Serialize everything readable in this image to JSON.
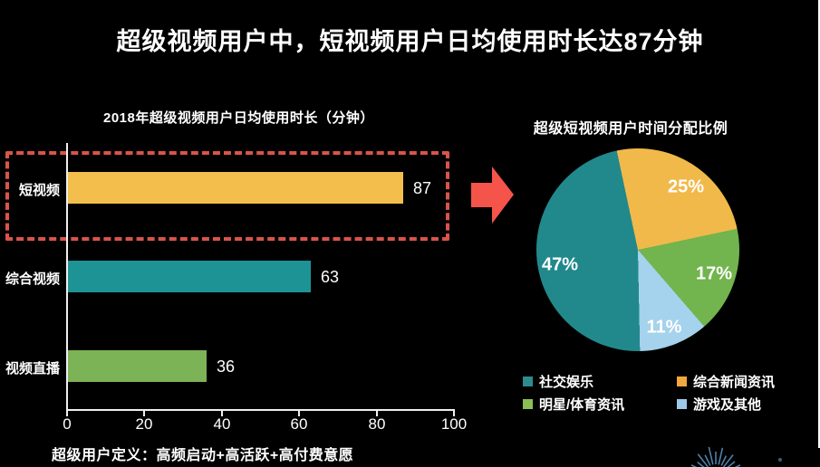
{
  "page": {
    "background": "#000000"
  },
  "header": {
    "title": "超级视频用户中，短视频用户日均使用时长达87分钟"
  },
  "bar_section": {
    "title": "2018年超级视频用户日均使用时长（分钟）",
    "bars": [
      {
        "label": "短视频",
        "value": 87,
        "value_label": "87",
        "color": "#F3BE4C"
      },
      {
        "label": "综合视频",
        "value": 63,
        "value_label": "63",
        "color": "#1E9396"
      },
      {
        "label": "视频直播",
        "value": 36,
        "value_label": "36",
        "color": "#7CB356"
      }
    ],
    "x_ticks": [
      "0",
      "20",
      "40",
      "60",
      "80",
      "100"
    ],
    "highlight_color": "#D9544A"
  },
  "arrow": {
    "color": "#F5544B"
  },
  "pie_section": {
    "title": "超级短视频用户时间分配比例",
    "start_angle_deg": -12,
    "slices": [
      {
        "label": "综合新闻资讯",
        "pct": 25,
        "pct_label": "25%",
        "color": "#F1B94A"
      },
      {
        "label": "明星/体育资讯",
        "pct": 17,
        "pct_label": "17%",
        "color": "#72B44E"
      },
      {
        "label": "游戏及其他",
        "pct": 11,
        "pct_label": "11%",
        "color": "#A5D2EC"
      },
      {
        "label": "社交娱乐",
        "pct": 47,
        "pct_label": "47%",
        "color": "#21898C"
      }
    ],
    "legend": [
      {
        "label": "社交娱乐",
        "color": "#2E8B8E"
      },
      {
        "label": "综合新闻资讯",
        "color": "#F0A73E"
      },
      {
        "label": "明星/体育资讯",
        "color": "#8ABF55"
      },
      {
        "label": "游戏及其他",
        "color": "#9FC9E8"
      }
    ]
  },
  "footnote": {
    "text": "超级用户定义：高频启动+高活跃+高付费意愿"
  },
  "decoration": {
    "starburst_color": "#4E81A8"
  },
  "chart_data": [
    {
      "type": "bar",
      "orientation": "horizontal",
      "title": "2018年超级视频用户日均使用时长（分钟）",
      "categories": [
        "短视频",
        "综合视频",
        "视频直播"
      ],
      "values": [
        87,
        63,
        36
      ],
      "value_labels": [
        "87",
        "63",
        "36"
      ],
      "bar_colors": [
        "#F3BE4C",
        "#1E9396",
        "#7CB356"
      ],
      "xlabel": "",
      "ylabel": "",
      "xlim": [
        0,
        100
      ],
      "x_ticks": [
        0,
        20,
        40,
        60,
        80,
        100
      ],
      "grid": false,
      "annotations": [
        "短视频 row enclosed by red dashed rectangle",
        "red arrow points from 短视频 bar to pie chart"
      ]
    },
    {
      "type": "pie",
      "title": "超级短视频用户时间分配比例",
      "labels": [
        "综合新闻资讯",
        "明星/体育资讯",
        "游戏及其他",
        "社交娱乐"
      ],
      "values": [
        25,
        17,
        11,
        47
      ],
      "slice_labels": [
        "25%",
        "17%",
        "11%",
        "47%"
      ],
      "colors": [
        "#F1B94A",
        "#72B44E",
        "#A5D2EC",
        "#21898C"
      ],
      "start_angle_deg": -12,
      "direction": "clockwise",
      "legend_position": "bottom",
      "legend_order": [
        "社交娱乐",
        "综合新闻资讯",
        "明星/体育资讯",
        "游戏及其他"
      ]
    }
  ]
}
